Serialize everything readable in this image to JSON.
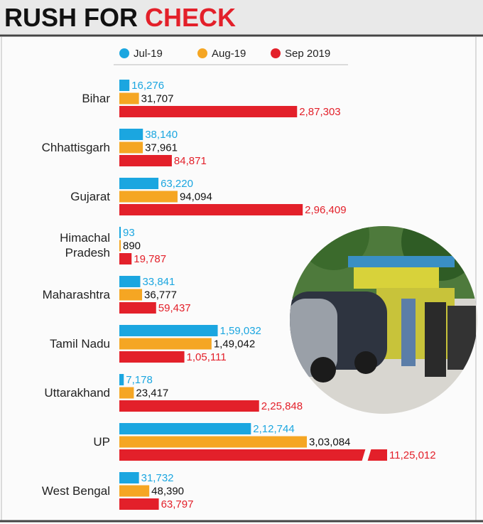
{
  "chart_data": {
    "type": "bar",
    "orientation": "horizontal",
    "title": "RUSH FOR",
    "title_highlight": "CHECK",
    "categories": [
      "Bihar",
      "Chhattisgarh",
      "Gujarat",
      "Himachal Pradesh",
      "Maharashtra",
      "Tamil Nadu",
      "Uttarakhand",
      "UP",
      "West Bengal"
    ],
    "series": [
      {
        "name": "Jul-19",
        "color": "#1ba6e0",
        "label_color": "#1ba6e0",
        "values": [
          16276,
          38140,
          63220,
          93,
          33841,
          159032,
          7178,
          212744,
          31732
        ],
        "value_labels": [
          "16,276",
          "38,140",
          "63,220",
          "93",
          "33,841",
          "1,59,032",
          "7,178",
          "2,12,744",
          "31,732"
        ]
      },
      {
        "name": "Aug-19",
        "color": "#f5a623",
        "label_color": "#111111",
        "values": [
          31707,
          37961,
          94094,
          890,
          36777,
          149042,
          23417,
          303084,
          48390
        ],
        "value_labels": [
          "31,707",
          "37,961",
          "94,094",
          "890",
          "36,777",
          "1,49,042",
          "23,417",
          "3,03,084",
          "48,390"
        ]
      },
      {
        "name": "Sep 2019",
        "color": "#e3202a",
        "label_color": "#e3202a",
        "values": [
          287303,
          84871,
          296409,
          19787,
          59437,
          105111,
          225848,
          1125012,
          63797
        ],
        "value_labels": [
          "2,87,303",
          "84,871",
          "2,96,409",
          "19,787",
          "59,437",
          "1,05,111",
          "2,25,848",
          "11,25,012",
          "63,797"
        ]
      }
    ],
    "axis_break": true
  }
}
